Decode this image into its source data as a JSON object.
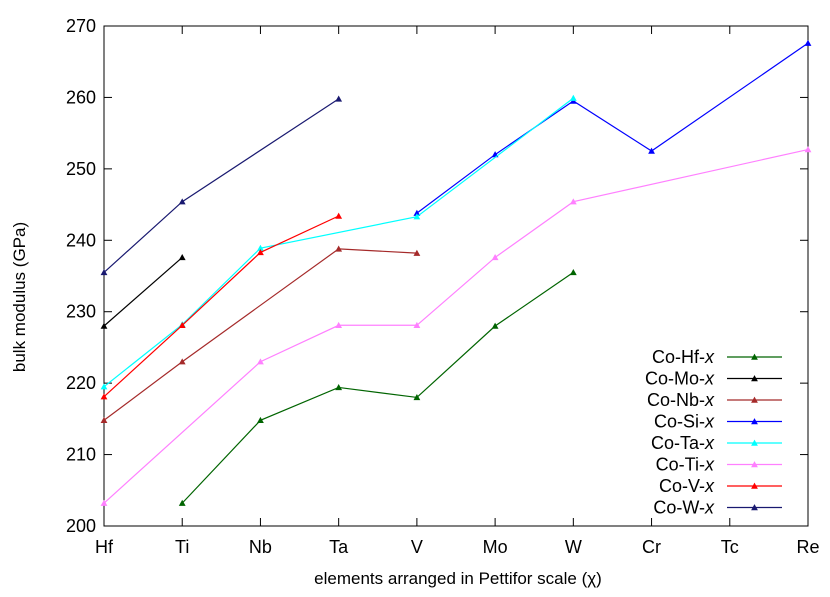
{
  "chart_data": {
    "type": "line",
    "title": "",
    "xlabel": "elements arranged in Pettifor scale (χ)",
    "ylabel": "bulk modulus (GPa)",
    "categories": [
      "Hf",
      "Ti",
      "Nb",
      "Ta",
      "V",
      "Mo",
      "W",
      "Cr",
      "Tc",
      "Re"
    ],
    "ylim": [
      200,
      270
    ],
    "yticks": [
      200,
      210,
      220,
      230,
      240,
      250,
      260,
      270
    ],
    "grid": false,
    "legend_position": "bottom-right",
    "series": [
      {
        "name": "Co-Hf-",
        "name_italic": "x",
        "color": "#006400",
        "marker": "triangle",
        "values": [
          null,
          203.2,
          214.8,
          219.4,
          218.0,
          228.0,
          235.5,
          null,
          null,
          null
        ]
      },
      {
        "name": "Co-Mo-",
        "name_italic": "x",
        "color": "#000000",
        "marker": "triangle",
        "values": [
          228.0,
          237.6,
          null,
          null,
          null,
          null,
          null,
          null,
          null,
          null
        ]
      },
      {
        "name": "Co-Nb-",
        "name_italic": "x",
        "color": "#A52A2A",
        "marker": "triangle",
        "values": [
          214.8,
          223.0,
          null,
          238.8,
          238.2,
          null,
          null,
          null,
          null,
          null
        ]
      },
      {
        "name": "Co-Si-",
        "name_italic": "x",
        "color": "#0000FF",
        "marker": "triangle",
        "values": [
          null,
          null,
          null,
          null,
          243.8,
          252.0,
          259.5,
          252.5,
          null,
          267.6
        ]
      },
      {
        "name": "Co-Ta-",
        "name_italic": "x",
        "color": "#00FFFF",
        "marker": "triangle",
        "values": [
          219.5,
          228.2,
          238.9,
          null,
          243.3,
          null,
          259.9,
          null,
          null,
          null
        ]
      },
      {
        "name": "Co-Ti-",
        "name_italic": "x",
        "color": "#FF80FF",
        "marker": "triangle",
        "values": [
          203.2,
          null,
          223.0,
          228.1,
          228.1,
          237.6,
          245.4,
          null,
          null,
          252.7
        ]
      },
      {
        "name": "Co-V-",
        "name_italic": "x",
        "color": "#FF0000",
        "marker": "triangle",
        "values": [
          218.1,
          228.1,
          238.3,
          243.4,
          null,
          null,
          null,
          null,
          null,
          null
        ]
      },
      {
        "name": "Co-W-",
        "name_italic": "x",
        "color": "#191970",
        "marker": "triangle",
        "values": [
          235.5,
          245.4,
          null,
          259.8,
          null,
          null,
          null,
          null,
          null,
          null
        ]
      }
    ]
  }
}
